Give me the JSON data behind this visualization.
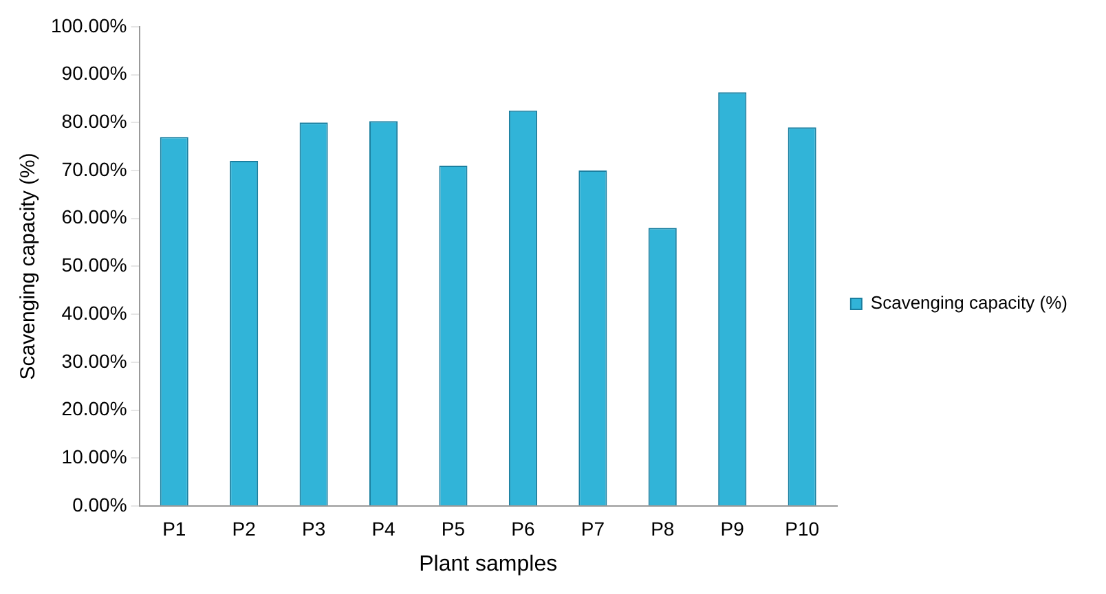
{
  "chart_data": {
    "type": "bar",
    "xlabel": "Plant samples",
    "ylabel": "Scavenging capacity (%)",
    "categories": [
      "P1",
      "P2",
      "P3",
      "P4",
      "P5",
      "P6",
      "P7",
      "P8",
      "P9",
      "P10"
    ],
    "series": [
      {
        "name": "Scavenging capacity (%)",
        "color": "#31b4d8",
        "values": [
          77,
          72,
          80,
          80.3,
          71,
          82.5,
          70,
          58,
          86.3,
          79
        ]
      }
    ],
    "ylim": [
      0,
      100
    ],
    "yticks": [
      {
        "value": 0,
        "label": "0.00%"
      },
      {
        "value": 10,
        "label": "10.00%"
      },
      {
        "value": 20,
        "label": "20.00%"
      },
      {
        "value": 30,
        "label": "30.00%"
      },
      {
        "value": 40,
        "label": "40.00%"
      },
      {
        "value": 50,
        "label": "50.00%"
      },
      {
        "value": 60,
        "label": "60.00%"
      },
      {
        "value": 70,
        "label": "70.00%"
      },
      {
        "value": 80,
        "label": "80.00%"
      },
      {
        "value": 90,
        "label": "90.00%"
      },
      {
        "value": 100,
        "label": "100.00%"
      }
    ],
    "legend": "right",
    "grid": false
  }
}
